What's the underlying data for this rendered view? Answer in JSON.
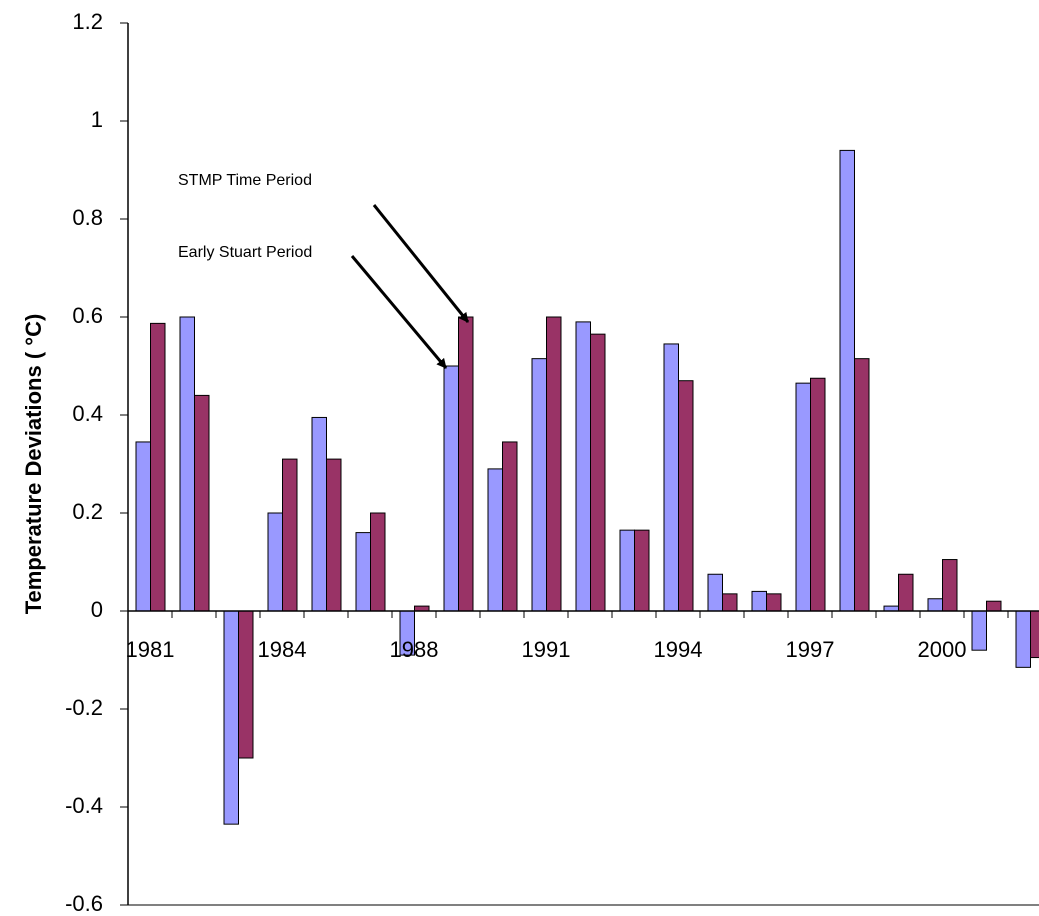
{
  "chart_data": {
    "type": "bar",
    "y_label": "Temperature Deviations ( °C)",
    "annotations": [
      "STMP Time Period",
      "Early Stuart Period"
    ],
    "categories": [
      "1981",
      null,
      null,
      "1984",
      null,
      null,
      "1988",
      null,
      null,
      "1991",
      null,
      null,
      "1994",
      null,
      null,
      "1997",
      null,
      null,
      "2000",
      null,
      null
    ],
    "series": [
      {
        "color": "#9999ff",
        "values": [
          0.345,
          0.6,
          -0.435,
          0.2,
          0.395,
          0.16,
          -0.09,
          0.5,
          0.29,
          0.515,
          0.59,
          0.165,
          0.545,
          0.075,
          0.04,
          0.465,
          0.94,
          0.01,
          0.025,
          -0.08,
          -0.115
        ]
      },
      {
        "color": "#993366",
        "values": [
          0.587,
          0.44,
          -0.3,
          0.31,
          0.31,
          0.2,
          0.01,
          0.6,
          0.345,
          0.6,
          0.565,
          0.165,
          0.47,
          0.035,
          0.035,
          0.475,
          0.515,
          0.075,
          0.105,
          0.02,
          -0.095
        ]
      }
    ],
    "ylim": [
      -0.6,
      1.2
    ],
    "yticks": [
      -0.6,
      -0.4,
      -0.2,
      0,
      0.2,
      0.4,
      0.6,
      0.8,
      1,
      1.2
    ],
    "grid": false
  }
}
